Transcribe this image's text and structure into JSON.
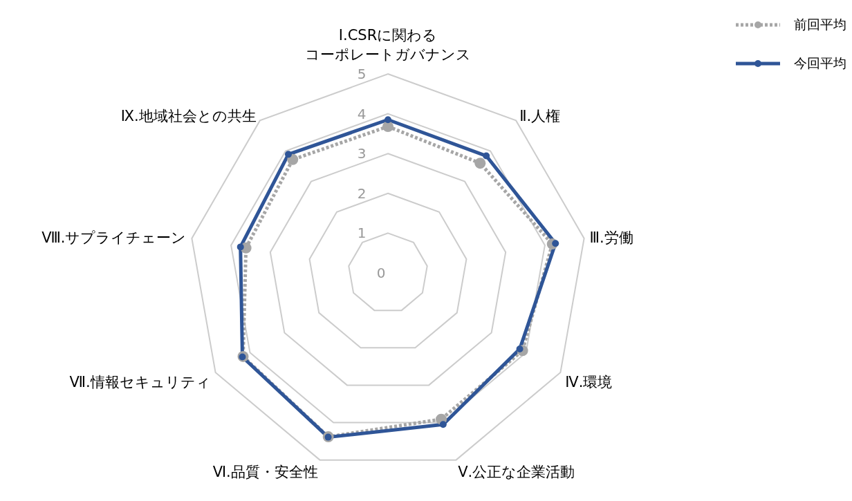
{
  "chart_data": {
    "type": "radar",
    "categories": [
      "Ⅰ.CSRに関わるコーポレートガバナンス",
      "Ⅱ.人権",
      "Ⅲ.労働",
      "Ⅳ.環境",
      "Ⅴ.公正な企業活動",
      "Ⅵ.品質・安全性",
      "Ⅶ.情報セキュリティ",
      "Ⅷ.サプライチェーン",
      "Ⅸ.地域社会との共生"
    ],
    "series": [
      {
        "name": "前回平均",
        "color": "#a6a6a6",
        "line_style": "dotted",
        "values": [
          3.68,
          3.6,
          4.19,
          3.9,
          3.91,
          4.38,
          4.2,
          3.62,
          3.72
        ]
      },
      {
        "name": "今回平均",
        "color": "#2f5597",
        "line_style": "solid",
        "values": [
          3.85,
          3.84,
          4.27,
          3.82,
          4.05,
          4.39,
          4.22,
          3.76,
          3.89
        ]
      }
    ],
    "ylim": [
      0,
      5
    ],
    "yticks": [
      0,
      1,
      2,
      3,
      4,
      5
    ],
    "grid": true,
    "legend": "top right",
    "marker": "circle"
  }
}
